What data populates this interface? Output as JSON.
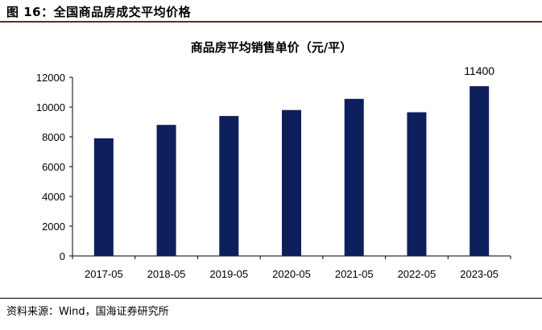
{
  "figure": {
    "title": "图 16：全国商品房成交平均价格",
    "source": "资料来源：Wind，国海证券研究所"
  },
  "colors": {
    "bar": "#0d1f5c",
    "axis": "#000000",
    "rule": "#7a1f2b"
  },
  "chart_data": {
    "type": "bar",
    "title": "商品房平均销售单价（元/平）",
    "xlabel": "",
    "ylabel": "",
    "categories": [
      "2017-05",
      "2018-05",
      "2019-05",
      "2020-05",
      "2021-05",
      "2022-05",
      "2023-05"
    ],
    "values": [
      7900,
      8800,
      9400,
      9800,
      10550,
      9650,
      11400
    ],
    "data_labels": [
      null,
      null,
      null,
      null,
      null,
      null,
      "11400"
    ],
    "ylim": [
      0,
      12000
    ],
    "yticks": [
      "0",
      "2000",
      "4000",
      "6000",
      "8000",
      "10000",
      "12000"
    ],
    "grid": false,
    "legend": "none"
  }
}
